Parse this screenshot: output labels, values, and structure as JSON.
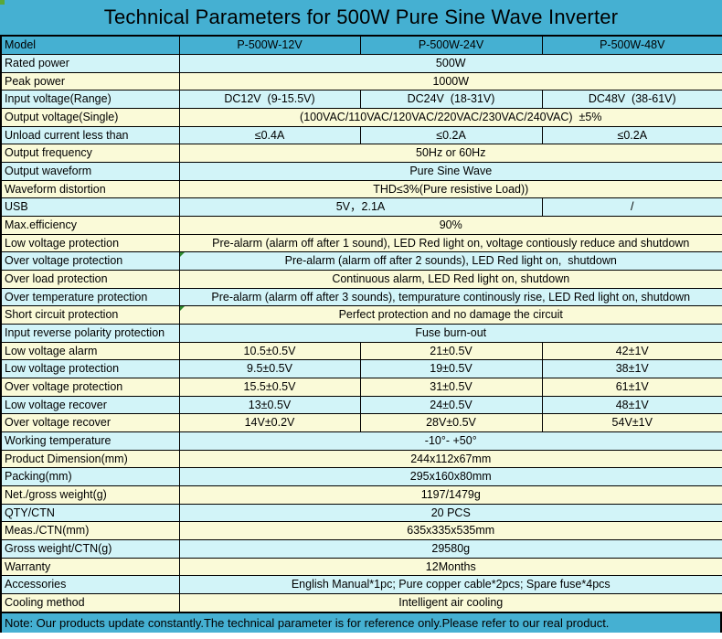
{
  "title": "Technical Parameters for 500W Pure Sine Wave Inverter",
  "colors": {
    "band_blue": "#45b0d2",
    "row_cyan": "#d2f4f8",
    "row_yellow": "#fafad8",
    "border_black": "#000000",
    "marker_green": "#2e8b2e",
    "artifact_green": "#5ba838"
  },
  "header": {
    "label": "Model",
    "columns": [
      "P-500W-12V",
      "P-500W-24V",
      "P-500W-48V"
    ]
  },
  "rows": [
    {
      "label": "Rated power",
      "tone": "cyan",
      "cells": [
        {
          "text": "500W",
          "span": 3
        }
      ]
    },
    {
      "label": "Peak power",
      "tone": "yellow",
      "cells": [
        {
          "text": "1000W",
          "span": 3
        }
      ]
    },
    {
      "label": "Input voltage(Range)",
      "tone": "cyan",
      "cells": [
        {
          "text": "DC12V  (9-15.5V)",
          "span": 1
        },
        {
          "text": "DC24V  (18-31V)",
          "span": 1
        },
        {
          "text": "DC48V  (38-61V)",
          "span": 1
        }
      ]
    },
    {
      "label": "Output voltage(Single)",
      "tone": "yellow",
      "cells": [
        {
          "text": "(100VAC/110VAC/120VAC/220VAC/230VAC/240VAC)  ±5%",
          "span": 3
        }
      ]
    },
    {
      "label": "Unload current less than",
      "tone": "cyan",
      "cells": [
        {
          "text": "≤0.4A",
          "span": 1
        },
        {
          "text": "≤0.2A",
          "span": 1
        },
        {
          "text": "≤0.2A",
          "span": 1
        }
      ]
    },
    {
      "label": "Output frequency",
      "tone": "yellow",
      "cells": [
        {
          "text": "50Hz or 60Hz",
          "span": 3
        }
      ]
    },
    {
      "label": "Output waveform",
      "tone": "cyan",
      "cells": [
        {
          "text": "Pure Sine Wave",
          "span": 3
        }
      ]
    },
    {
      "label": "Waveform distortion",
      "tone": "yellow",
      "cells": [
        {
          "text": "THD≤3%(Pure resistive Load))",
          "span": 3
        }
      ]
    },
    {
      "label": "USB",
      "tone": "cyan",
      "cells": [
        {
          "text": "5V，2.1A",
          "span": 2
        },
        {
          "text": "/",
          "span": 1
        }
      ]
    },
    {
      "label": "Max.efficiency",
      "tone": "yellow",
      "cells": [
        {
          "text": "90%",
          "span": 3
        }
      ]
    },
    {
      "label": "Low voltage protection",
      "tone": "yellow",
      "cells": [
        {
          "text": "Pre-alarm (alarm off after 1 sound), LED Red light on, voltage contiously reduce and shutdown",
          "span": 3
        }
      ]
    },
    {
      "label": "Over voltage protection",
      "tone": "cyan",
      "cells": [
        {
          "text": "Pre-alarm (alarm off after 2 sounds), LED Red light on,  shutdown",
          "span": 3,
          "marker": true
        }
      ]
    },
    {
      "label": "Over load protection",
      "tone": "yellow",
      "cells": [
        {
          "text": "Continuous alarm, LED Red light on, shutdown",
          "span": 3
        }
      ]
    },
    {
      "label": "Over temperature protection",
      "tone": "cyan",
      "cells": [
        {
          "text": "Pre-alarm (alarm off after 3 sounds), tempurature continously rise, LED Red light on, shutdown",
          "span": 3
        }
      ]
    },
    {
      "label": "Short circuit protection",
      "tone": "yellow",
      "cells": [
        {
          "text": "Perfect protection and no damage the circuit",
          "span": 3,
          "marker": true
        }
      ]
    },
    {
      "label": "Input reverse polarity protection",
      "tone": "cyan",
      "cells": [
        {
          "text": "Fuse burn-out",
          "span": 3
        }
      ]
    },
    {
      "label": "Low voltage alarm",
      "tone": "yellow",
      "cells": [
        {
          "text": "10.5±0.5V",
          "span": 1
        },
        {
          "text": "21±0.5V",
          "span": 1
        },
        {
          "text": "42±1V",
          "span": 1
        }
      ]
    },
    {
      "label": "Low voltage protection",
      "tone": "cyan",
      "cells": [
        {
          "text": "9.5±0.5V",
          "span": 1
        },
        {
          "text": "19±0.5V",
          "span": 1
        },
        {
          "text": "38±1V",
          "span": 1
        }
      ]
    },
    {
      "label": "Over voltage protection",
      "tone": "yellow",
      "cells": [
        {
          "text": "15.5±0.5V",
          "span": 1
        },
        {
          "text": "31±0.5V",
          "span": 1
        },
        {
          "text": "61±1V",
          "span": 1
        }
      ]
    },
    {
      "label": "Low voltage recover",
      "tone": "cyan",
      "cells": [
        {
          "text": "13±0.5V",
          "span": 1
        },
        {
          "text": "24±0.5V",
          "span": 1
        },
        {
          "text": "48±1V",
          "span": 1
        }
      ]
    },
    {
      "label": "Over voltage recover",
      "tone": "yellow",
      "cells": [
        {
          "text": "14V±0.2V",
          "span": 1
        },
        {
          "text": "28V±0.5V",
          "span": 1
        },
        {
          "text": "54V±1V",
          "span": 1
        }
      ]
    },
    {
      "label": "Working temperature",
      "tone": "cyan",
      "cells": [
        {
          "text": "-10°- +50°",
          "span": 3
        }
      ]
    },
    {
      "label": "Product Dimension(mm)",
      "tone": "yellow",
      "cells": [
        {
          "text": "244x112x67mm",
          "span": 3
        }
      ]
    },
    {
      "label": "Packing(mm)",
      "tone": "cyan",
      "cells": [
        {
          "text": "295x160x80mm",
          "span": 3
        }
      ]
    },
    {
      "label": "Net./gross weight(g)",
      "tone": "yellow",
      "cells": [
        {
          "text": "1197/1479g",
          "span": 3
        }
      ]
    },
    {
      "label": "QTY/CTN",
      "tone": "cyan",
      "cells": [
        {
          "text": "20 PCS",
          "span": 3
        }
      ]
    },
    {
      "label": "Meas./CTN(mm)",
      "tone": "yellow",
      "cells": [
        {
          "text": "635x335x535mm",
          "span": 3
        }
      ]
    },
    {
      "label": "Gross weight/CTN(g)",
      "tone": "cyan",
      "cells": [
        {
          "text": "29580g",
          "span": 3
        }
      ]
    },
    {
      "label": "Warranty",
      "tone": "yellow",
      "cells": [
        {
          "text": "12Months",
          "span": 3
        }
      ]
    },
    {
      "label": "Accessories",
      "tone": "cyan",
      "cells": [
        {
          "text": "English Manual*1pc; Pure copper cable*2pcs; Spare fuse*4pcs",
          "span": 3
        }
      ]
    },
    {
      "label": "Cooling method",
      "tone": "yellow",
      "cells": [
        {
          "text": "Intelligent air cooling",
          "span": 3
        }
      ]
    }
  ],
  "note": "Note: Our products update constantly.The technical parameter is for reference only.Please refer to our real product."
}
